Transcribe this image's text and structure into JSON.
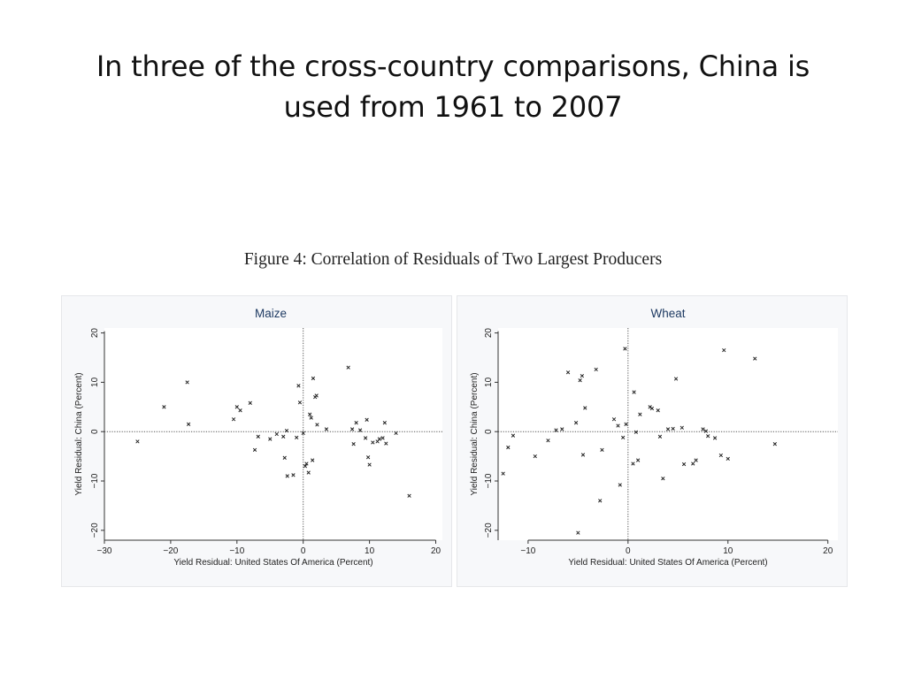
{
  "slide": {
    "title_line1": "In three of the cross-country comparisons, China is",
    "title_line2": "used from 1961 to 2007",
    "figure_caption": "Figure 4: Correlation of Residuals of Two Largest Producers"
  },
  "chart_data": [
    {
      "type": "scatter",
      "title": "Maize",
      "xlabel": "Yield Residual: United States Of America (Percent)",
      "ylabel": "Yield Residual: China (Percent)",
      "xlim": [
        -30,
        21
      ],
      "ylim": [
        -22,
        21
      ],
      "xticks": [
        -30,
        -20,
        -10,
        0,
        10,
        20
      ],
      "yticks": [
        -20,
        -10,
        0,
        10,
        20
      ],
      "xtick_labels": [
        "−30",
        "−20",
        "−10",
        "0",
        "10",
        "20"
      ],
      "ytick_labels": [
        "−20",
        "−10",
        "0",
        "10",
        "20"
      ],
      "reference_lines": {
        "x": 0,
        "y": 0
      },
      "points": [
        [
          -25,
          -2
        ],
        [
          -21,
          5
        ],
        [
          -17.5,
          10
        ],
        [
          -17.3,
          1.5
        ],
        [
          -10.5,
          2.5
        ],
        [
          -10,
          5
        ],
        [
          -9.5,
          4.3
        ],
        [
          -8,
          5.8
        ],
        [
          -7.3,
          -3.7
        ],
        [
          -6.8,
          -1
        ],
        [
          -5,
          -1.5
        ],
        [
          -4,
          -0.5
        ],
        [
          -3,
          -1
        ],
        [
          -2.8,
          -5.3
        ],
        [
          -2.5,
          0.2
        ],
        [
          -2.4,
          -9
        ],
        [
          -1.5,
          -8.8
        ],
        [
          -1,
          -1.2
        ],
        [
          -0.7,
          9.3
        ],
        [
          -0.5,
          5.9
        ],
        [
          0,
          -0.3
        ],
        [
          0.3,
          -7
        ],
        [
          0.5,
          -6.5
        ],
        [
          0.8,
          -8.3
        ],
        [
          1,
          3.5
        ],
        [
          1.2,
          2.8
        ],
        [
          1.4,
          -5.8
        ],
        [
          1.5,
          10.8
        ],
        [
          1.8,
          7
        ],
        [
          2,
          7.3
        ],
        [
          2.1,
          1.4
        ],
        [
          3.5,
          0.5
        ],
        [
          6.8,
          13
        ],
        [
          7.4,
          0.5
        ],
        [
          7.6,
          -2.5
        ],
        [
          8,
          1.8
        ],
        [
          8.6,
          0.3
        ],
        [
          9.4,
          -1.3
        ],
        [
          9.6,
          2.4
        ],
        [
          9.8,
          -5.2
        ],
        [
          10,
          -6.7
        ],
        [
          10.5,
          -2.2
        ],
        [
          11.2,
          -2
        ],
        [
          11.5,
          -1.5
        ],
        [
          12,
          -1.3
        ],
        [
          12.3,
          1.8
        ],
        [
          12.5,
          -2.4
        ],
        [
          14,
          -0.3
        ],
        [
          16,
          -13
        ]
      ]
    },
    {
      "type": "scatter",
      "title": "Wheat",
      "xlabel": "Yield Residual: United States Of America (Percent)",
      "ylabel": "Yield Residual: China (Percent)",
      "xlim": [
        -13,
        21
      ],
      "ylim": [
        -22,
        21
      ],
      "xticks": [
        -10,
        0,
        10,
        20
      ],
      "yticks": [
        -20,
        -10,
        0,
        10,
        20
      ],
      "xtick_labels": [
        "−10",
        "0",
        "10",
        "20"
      ],
      "ytick_labels": [
        "−20",
        "−10",
        "0",
        "10",
        "20"
      ],
      "reference_lines": {
        "x": 0,
        "y": 0
      },
      "points": [
        [
          -12.5,
          -8.5
        ],
        [
          -12,
          -3.2
        ],
        [
          -11.5,
          -0.8
        ],
        [
          -9.3,
          -5
        ],
        [
          -8,
          -1.8
        ],
        [
          -7.2,
          0.3
        ],
        [
          -6.6,
          0.5
        ],
        [
          -6,
          12
        ],
        [
          -5.2,
          1.8
        ],
        [
          -4.8,
          10.4
        ],
        [
          -4.6,
          11.3
        ],
        [
          -4.5,
          -4.7
        ],
        [
          -4.3,
          4.8
        ],
        [
          -3.2,
          12.6
        ],
        [
          -2.8,
          -14
        ],
        [
          -2.6,
          -3.7
        ],
        [
          -1.4,
          2.5
        ],
        [
          -1,
          1.2
        ],
        [
          -0.8,
          -10.8
        ],
        [
          -0.5,
          -1.2
        ],
        [
          -0.3,
          16.8
        ],
        [
          -0.2,
          1.5
        ],
        [
          0.5,
          -6.5
        ],
        [
          0.6,
          8
        ],
        [
          0.8,
          -0.1
        ],
        [
          1,
          -5.8
        ],
        [
          1.2,
          3.5
        ],
        [
          2.2,
          5
        ],
        [
          2.4,
          4.7
        ],
        [
          3,
          4.3
        ],
        [
          3.2,
          -1
        ],
        [
          3.5,
          -9.5
        ],
        [
          4,
          0.5
        ],
        [
          4.5,
          0.6
        ],
        [
          4.8,
          10.7
        ],
        [
          5.4,
          0.8
        ],
        [
          5.6,
          -6.6
        ],
        [
          6.5,
          -6.5
        ],
        [
          6.8,
          -5.8
        ],
        [
          7.5,
          0.5
        ],
        [
          7.8,
          0.1
        ],
        [
          8,
          -0.9
        ],
        [
          8.7,
          -1.3
        ],
        [
          9.3,
          -4.8
        ],
        [
          9.6,
          16.5
        ],
        [
          10,
          -5.5
        ],
        [
          12.7,
          14.8
        ],
        [
          14.7,
          -2.5
        ],
        [
          -5,
          -20.5
        ]
      ]
    }
  ]
}
